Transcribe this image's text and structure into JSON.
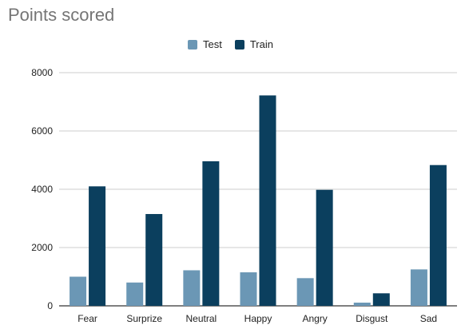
{
  "chart_data": {
    "type": "bar",
    "title": "Points scored",
    "xlabel": "",
    "ylabel": "",
    "categories": [
      "Fear",
      "Surprize",
      "Neutral",
      "Happy",
      "Angry",
      "Disgust",
      "Sad"
    ],
    "series": [
      {
        "name": "Test",
        "color": "#6b97b5",
        "values": [
          1000,
          800,
          1220,
          1150,
          950,
          110,
          1250
        ]
      },
      {
        "name": "Train",
        "color": "#0b3f5e",
        "values": [
          4100,
          3150,
          4960,
          7220,
          3980,
          430,
          4830
        ]
      }
    ],
    "ylim": [
      0,
      8000
    ],
    "yticks": [
      0,
      2000,
      4000,
      6000,
      8000
    ],
    "grid": true,
    "legend_position": "top-center"
  }
}
